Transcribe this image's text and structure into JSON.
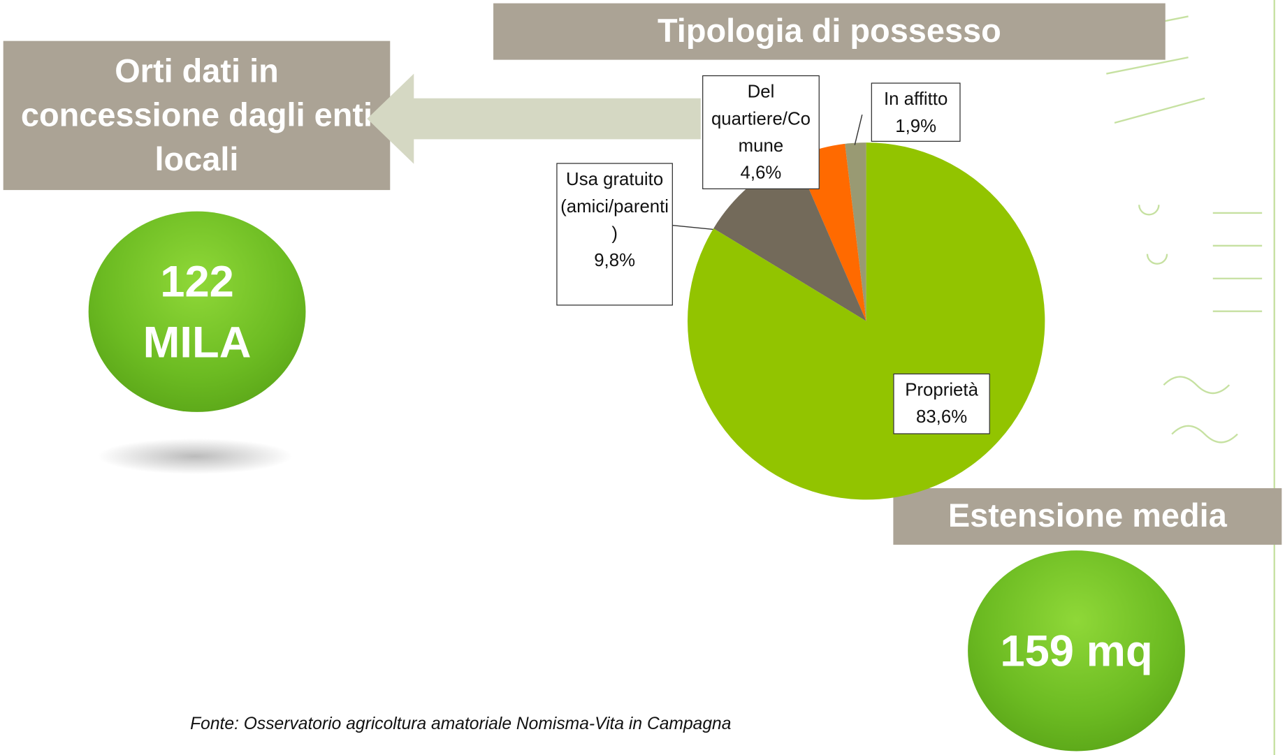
{
  "chart_data": {
    "type": "pie",
    "title": "Tipologia di possesso",
    "categories": [
      "Proprietà",
      "Usa gratuito (amici/parenti)",
      "Del quartiere/Comune",
      "In affitto"
    ],
    "values": [
      83.6,
      9.8,
      4.6,
      1.9
    ],
    "value_labels": [
      "83,6%",
      "9,8%",
      "4,6%",
      "1,9%"
    ],
    "colors": [
      "#92c400",
      "#736a5a",
      "#ff6a00",
      "#999a73"
    ]
  },
  "left_panel": {
    "title": "Orti dati in concessione dagli enti locali",
    "value": "122 MILA"
  },
  "right_panel": {
    "title": "Estensione media",
    "value": "159 mq"
  },
  "source": "Fonte: Osservatorio agricoltura amatoriale Nomisma-Vita in Campagna"
}
